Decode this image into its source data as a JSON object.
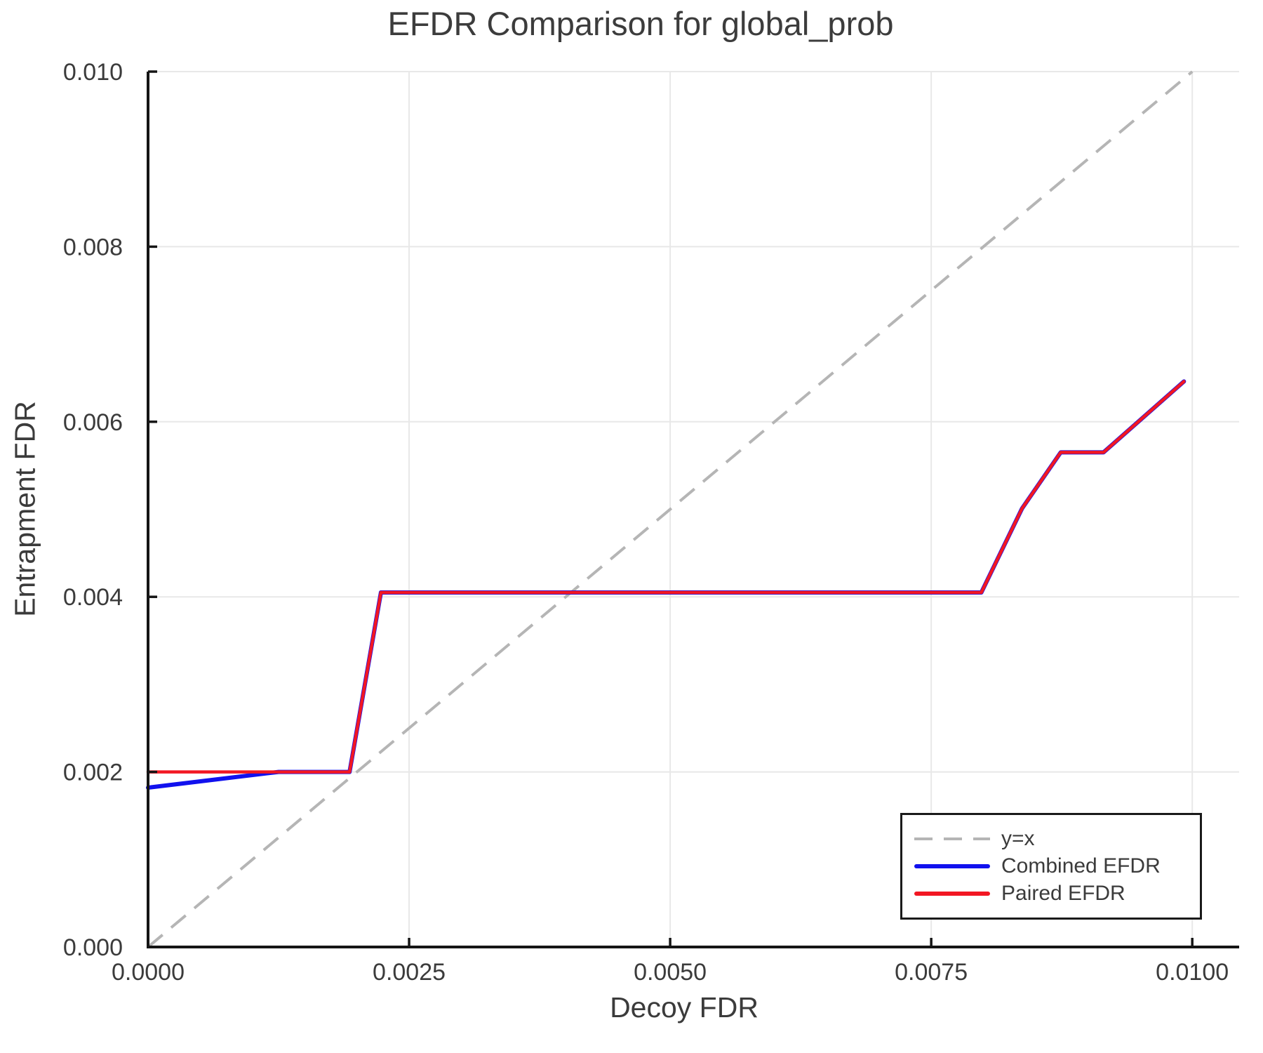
{
  "chart": {
    "title": "EFDR Comparison for global_prob",
    "xlabel": "Decoy FDR",
    "ylabel": "Entrapment FDR"
  },
  "legend": {
    "position": "lower right",
    "items": [
      {
        "label": "y=x"
      },
      {
        "label": "Combined EFDR"
      },
      {
        "label": "Paired EFDR"
      }
    ]
  },
  "colors": {
    "reference_line": "#b5b5b5",
    "combined_line": "#1111ee",
    "paired_line": "#f21722",
    "gridline": "#e8e8e8",
    "axis_spine": "#151515",
    "text": "#3b3b3b"
  },
  "chart_data": {
    "type": "line",
    "title": "EFDR Comparison for global_prob",
    "xlabel": "Decoy FDR",
    "ylabel": "Entrapment FDR",
    "xlim": [
      0,
      0.010449
    ],
    "ylim": [
      0,
      0.01
    ],
    "grid": true,
    "legend_position": "lower right",
    "x_ticks": {
      "values": [
        0.0,
        0.0025,
        0.005,
        0.0075,
        0.01
      ],
      "labels": [
        "0.0000",
        "0.0025",
        "0.0050",
        "0.0075",
        "0.0100"
      ]
    },
    "y_ticks": {
      "values": [
        0.0,
        0.002,
        0.004,
        0.006,
        0.008,
        0.01
      ],
      "labels": [
        "0.000",
        "0.002",
        "0.004",
        "0.006",
        "0.008",
        "0.010"
      ]
    },
    "series": [
      {
        "name": "y=x",
        "style": "dashed",
        "color": "#b5b5b5",
        "width": 4,
        "x": [
          0.0,
          0.01
        ],
        "y": [
          0.0,
          0.01
        ]
      },
      {
        "name": "Combined EFDR",
        "style": "solid",
        "color": "#1111ee",
        "width": 6,
        "x": [
          0.0,
          0.00125,
          0.00193,
          0.00223,
          0.00798,
          0.00837,
          0.00874,
          0.00915,
          0.00992
        ],
        "y": [
          0.00182,
          0.002,
          0.002,
          0.00405,
          0.00405,
          0.00501,
          0.00565,
          0.00565,
          0.00646
        ]
      },
      {
        "name": "Paired EFDR",
        "style": "solid",
        "color": "#f21722",
        "width": 4.5,
        "x": [
          0.0,
          0.00193,
          0.00223,
          0.00798,
          0.00837,
          0.00874,
          0.00915,
          0.00992
        ],
        "y": [
          0.002,
          0.002,
          0.00405,
          0.00405,
          0.00501,
          0.00565,
          0.00565,
          0.00646
        ]
      }
    ]
  }
}
